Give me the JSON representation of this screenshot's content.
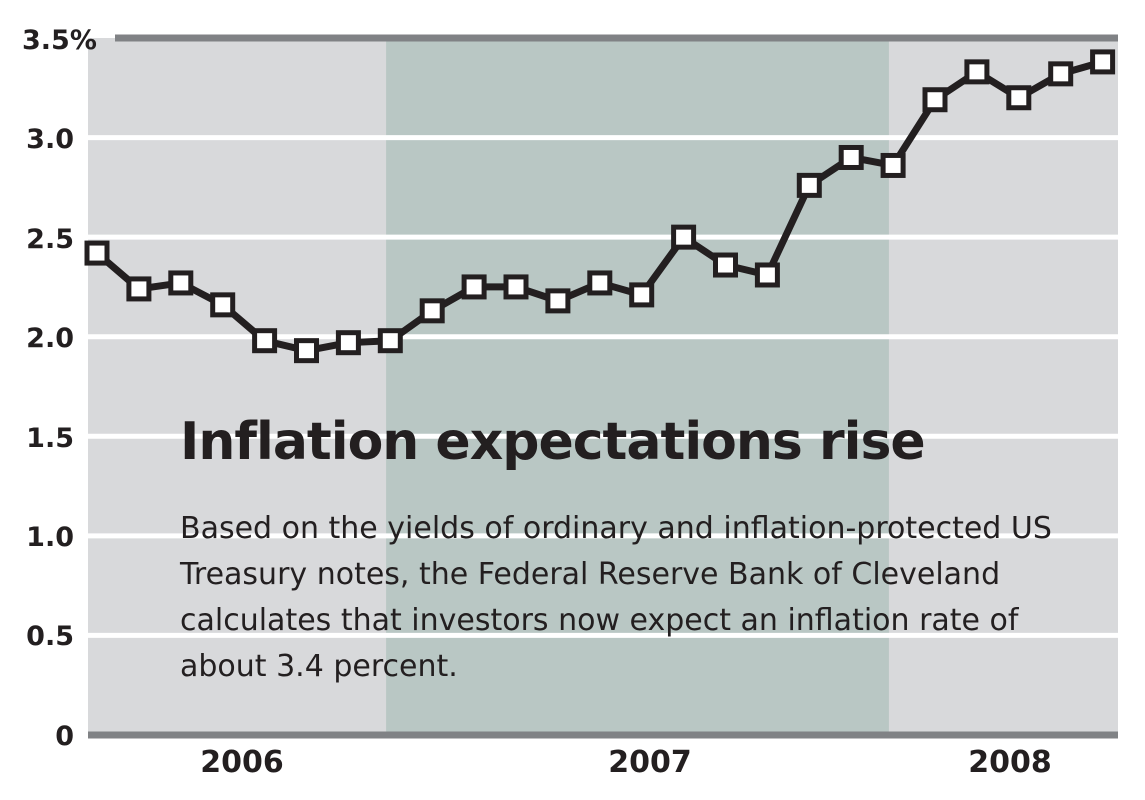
{
  "chart_data": {
    "type": "line",
    "title": "Inflation expectations rise",
    "subtitle": "Based on the yields of ordinary and inflation-protected US Treasury notes, the Federal Reserve Bank of Cleveland calculates that investors now expect an inflation rate of about 3.4 percent.",
    "xlabel": "",
    "ylabel": "",
    "ylim": [
      0,
      3.5
    ],
    "y_ticks": [
      "0",
      "0.5",
      "1.0",
      "1.5",
      "2.0",
      "2.5",
      "3.0",
      "3.5%"
    ],
    "x_ticks": [
      "2006",
      "2007",
      "2008"
    ],
    "grid": true,
    "x_start": "2005-10",
    "interval": "monthly",
    "series": [
      {
        "values": [
          2.42,
          2.24,
          2.27,
          2.16,
          1.98,
          1.93,
          1.97,
          1.98,
          2.13,
          2.25,
          2.25,
          2.18,
          2.27,
          2.21,
          2.5,
          2.36,
          2.31,
          2.76,
          2.9,
          2.86,
          3.19,
          3.33,
          3.2,
          3.32,
          3.38
        ],
        "color": "#231f20"
      }
    ],
    "shaded_regions": [
      {
        "start_index": 6.9,
        "end_index": 18.9,
        "color": "#b9c7c4"
      }
    ],
    "background_color": "#d8d9db",
    "grid_color": "#ffffff"
  }
}
